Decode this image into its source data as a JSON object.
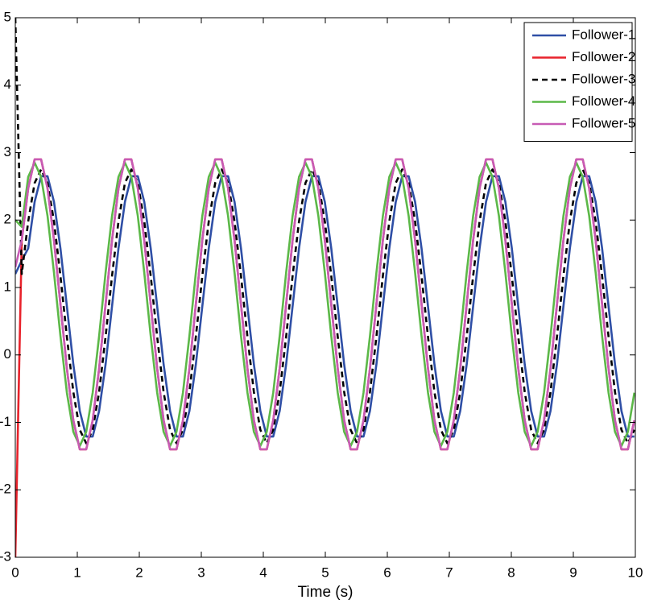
{
  "chart_data": {
    "type": "line",
    "x_label": "Time (s)",
    "xlim": [
      0,
      10
    ],
    "ylim": [
      -3,
      5
    ],
    "xticks": [
      0,
      1,
      2,
      3,
      4,
      5,
      6,
      7,
      8,
      9,
      10
    ],
    "yticks": [
      -3,
      -2,
      -1,
      0,
      1,
      2,
      3,
      4,
      5
    ],
    "legend": "upper right",
    "x": [
      0,
      0.104,
      0.208,
      0.312,
      0.416,
      0.52,
      0.624,
      0.728,
      0.832,
      0.936,
      1.04,
      1.144,
      1.248,
      1.352,
      1.456,
      1.56,
      1.664,
      1.768,
      1.872,
      1.976,
      2.08,
      2.184,
      2.288,
      2.392,
      2.496,
      2.6,
      2.704,
      2.808,
      2.912,
      3.016,
      3.12,
      3.224,
      3.328,
      3.432,
      3.536,
      3.64,
      3.744,
      3.848,
      3.952,
      4.056,
      4.16,
      4.264,
      4.368,
      4.472,
      4.576,
      4.68,
      4.784,
      4.888,
      4.992,
      5.096,
      5.2,
      5.304,
      5.408,
      5.512,
      5.616,
      5.72,
      5.824,
      5.928,
      6.032,
      6.136,
      6.24,
      6.344,
      6.448,
      6.552,
      6.656,
      6.76,
      6.864,
      6.968,
      7.072,
      7.176,
      7.28,
      7.384,
      7.488,
      7.592,
      7.696,
      7.8,
      7.904,
      8.008,
      8.112,
      8.216,
      8.32,
      8.424,
      8.528,
      8.632,
      8.736,
      8.84,
      8.944,
      9.048,
      9.152,
      9.256,
      9.36,
      9.464,
      9.568,
      9.672,
      9.776,
      9.88,
      9.984
    ],
    "series": [
      {
        "name": "Follower-1",
        "color": "#2f4fa6",
        "linestyle": "solid",
        "values": [
          1.2,
          1.4,
          1.58,
          2.27,
          2.65,
          2.65,
          2.27,
          1.58,
          0.72,
          -0.14,
          -0.83,
          -1.21,
          -1.21,
          -0.83,
          -0.14,
          0.72,
          1.58,
          2.27,
          2.65,
          2.65,
          2.27,
          1.58,
          0.72,
          -0.14,
          -0.83,
          -1.21,
          -1.21,
          -0.83,
          -0.14,
          0.72,
          1.58,
          2.27,
          2.65,
          2.65,
          2.27,
          1.58,
          0.72,
          -0.14,
          -0.83,
          -1.21,
          -1.21,
          -0.83,
          -0.14,
          0.72,
          1.58,
          2.27,
          2.65,
          2.65,
          2.27,
          1.58,
          0.72,
          -0.14,
          -0.83,
          -1.21,
          -1.21,
          -0.83,
          -0.14,
          0.72,
          1.58,
          2.27,
          2.65,
          2.65,
          2.27,
          1.58,
          0.72,
          -0.14,
          -0.83,
          -1.21,
          -1.21,
          -0.83,
          -0.14,
          0.72,
          1.58,
          2.27,
          2.65,
          2.65,
          2.27,
          1.58,
          0.72,
          -0.14,
          -0.83,
          -1.21,
          -1.21,
          -0.83,
          -0.14,
          0.72,
          1.58,
          2.27,
          2.65,
          2.65,
          2.27,
          1.58,
          0.72,
          -0.14,
          -0.83,
          -1.21,
          -1.21
        ]
      },
      {
        "name": "Follower-2",
        "color": "#e8222b",
        "linestyle": "solid",
        "values": [
          -3,
          1.7,
          2.47,
          2.9,
          2.9,
          2.47,
          1.7,
          0.75,
          -0.2,
          -0.97,
          -1.4,
          -1.4,
          -0.97,
          -0.2,
          0.75,
          1.7,
          2.47,
          2.9,
          2.9,
          2.47,
          1.7,
          0.75,
          -0.2,
          -0.97,
          -1.4,
          -1.4,
          -0.97,
          -0.2,
          0.75,
          1.7,
          2.47,
          2.9,
          2.9,
          2.47,
          1.7,
          0.75,
          -0.2,
          -0.97,
          -1.4,
          -1.4,
          -0.97,
          -0.2,
          0.75,
          1.7,
          2.47,
          2.9,
          2.9,
          2.47,
          1.7,
          0.75,
          -0.2,
          -0.97,
          -1.4,
          -1.4,
          -0.97,
          -0.2,
          0.75,
          1.7,
          2.47,
          2.9,
          2.9,
          2.47,
          1.7,
          0.75,
          -0.2,
          -0.97,
          -1.4,
          -1.4,
          -0.97,
          -0.2,
          0.75,
          1.7,
          2.47,
          2.9,
          2.9,
          2.47,
          1.7,
          0.75,
          -0.2,
          -0.97,
          -1.4,
          -1.4,
          -0.97,
          -0.2,
          0.75,
          1.7,
          2.47,
          2.9,
          2.9,
          2.47,
          1.7,
          0.75,
          -0.2,
          -0.97,
          -1.4,
          -1.4,
          -0.97
        ]
      },
      {
        "name": "Follower-3",
        "color": "#000000",
        "linestyle": "dashed",
        "values": [
          5,
          1.2,
          1.98,
          2.55,
          2.75,
          2.55,
          1.98,
          1.17,
          0.27,
          -0.55,
          -1.11,
          -1.31,
          -1.11,
          -0.55,
          0.27,
          1.17,
          1.98,
          2.55,
          2.75,
          2.55,
          1.98,
          1.17,
          0.27,
          -0.55,
          -1.11,
          -1.31,
          -1.11,
          -0.55,
          0.27,
          1.17,
          1.98,
          2.55,
          2.75,
          2.55,
          1.98,
          1.17,
          0.27,
          -0.55,
          -1.11,
          -1.31,
          -1.11,
          -0.55,
          0.27,
          1.17,
          1.98,
          2.55,
          2.75,
          2.55,
          1.98,
          1.17,
          0.27,
          -0.55,
          -1.11,
          -1.31,
          -1.11,
          -0.55,
          0.27,
          1.17,
          1.98,
          2.55,
          2.75,
          2.55,
          1.98,
          1.17,
          0.27,
          -0.55,
          -1.11,
          -1.31,
          -1.11,
          -0.55,
          0.27,
          1.17,
          1.98,
          2.55,
          2.75,
          2.55,
          1.98,
          1.17,
          0.27,
          -0.55,
          -1.11,
          -1.31,
          -1.11,
          -0.55,
          0.27,
          1.17,
          1.98,
          2.55,
          2.75,
          2.55,
          1.98,
          1.17,
          0.27,
          -0.55,
          -1.11,
          -1.31,
          -1.11
        ]
      },
      {
        "name": "Follower-4",
        "color": "#5cb848",
        "linestyle": "solid",
        "values": [
          2.0,
          1.9,
          2.64,
          2.85,
          2.64,
          2.06,
          1.22,
          0.28,
          -0.56,
          -1.14,
          -1.35,
          -1.14,
          -0.56,
          0.28,
          1.22,
          2.06,
          2.64,
          2.85,
          2.64,
          2.06,
          1.22,
          0.28,
          -0.56,
          -1.14,
          -1.35,
          -1.14,
          -0.56,
          0.28,
          1.22,
          2.06,
          2.64,
          2.85,
          2.64,
          2.06,
          1.22,
          0.28,
          -0.56,
          -1.14,
          -1.35,
          -1.14,
          -0.56,
          0.28,
          1.22,
          2.06,
          2.64,
          2.85,
          2.64,
          2.06,
          1.22,
          0.28,
          -0.56,
          -1.14,
          -1.35,
          -1.14,
          -0.56,
          0.28,
          1.22,
          2.06,
          2.64,
          2.85,
          2.64,
          2.06,
          1.22,
          0.28,
          -0.56,
          -1.14,
          -1.35,
          -1.14,
          -0.56,
          0.28,
          1.22,
          2.06,
          2.64,
          2.85,
          2.64,
          2.06,
          1.22,
          0.28,
          -0.56,
          -1.14,
          -1.35,
          -1.14,
          -0.56,
          0.28,
          1.22,
          2.06,
          2.64,
          2.85,
          2.64,
          2.06,
          1.22,
          0.28,
          -0.56,
          -1.14,
          -1.35,
          -1.14,
          -0.56
        ]
      },
      {
        "name": "Follower-5",
        "color": "#c75bb5",
        "linestyle": "solid",
        "values": [
          1.3,
          1.7,
          2.47,
          2.9,
          2.9,
          2.47,
          1.7,
          0.75,
          -0.2,
          -0.97,
          -1.4,
          -1.4,
          -0.97,
          -0.2,
          0.75,
          1.7,
          2.47,
          2.9,
          2.9,
          2.47,
          1.7,
          0.75,
          -0.2,
          -0.97,
          -1.4,
          -1.4,
          -0.97,
          -0.2,
          0.75,
          1.7,
          2.47,
          2.9,
          2.9,
          2.47,
          1.7,
          0.75,
          -0.2,
          -0.97,
          -1.4,
          -1.4,
          -0.97,
          -0.2,
          0.75,
          1.7,
          2.47,
          2.9,
          2.9,
          2.47,
          1.7,
          0.75,
          -0.2,
          -0.97,
          -1.4,
          -1.4,
          -0.97,
          -0.2,
          0.75,
          1.7,
          2.47,
          2.9,
          2.9,
          2.47,
          1.7,
          0.75,
          -0.2,
          -0.97,
          -1.4,
          -1.4,
          -0.97,
          -0.2,
          0.75,
          1.7,
          2.47,
          2.9,
          2.9,
          2.47,
          1.7,
          0.75,
          -0.2,
          -0.97,
          -1.4,
          -1.4,
          -0.97,
          -0.2,
          0.75,
          1.7,
          2.47,
          2.9,
          2.9,
          2.47,
          1.7,
          0.75,
          -0.2,
          -0.97,
          -1.4,
          -1.4,
          -0.97
        ]
      }
    ]
  }
}
